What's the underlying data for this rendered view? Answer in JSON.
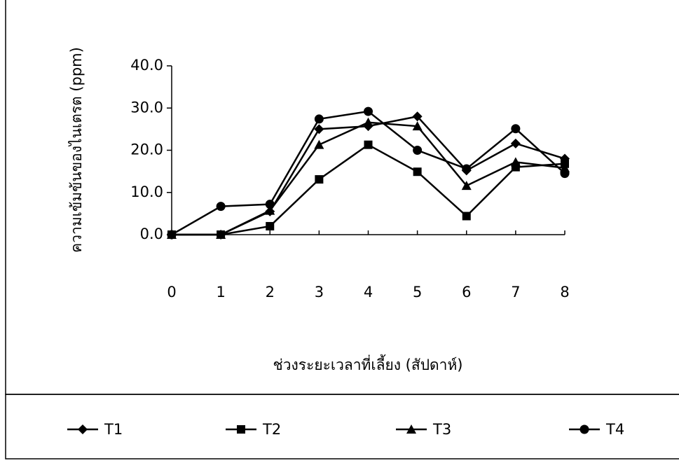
{
  "chart_data": {
    "type": "line",
    "x_label": "ช่วงระยะเวลาที่เลี้ยง (สัปดาห์)",
    "y_label": "ความเข้มข้นของไนเตรต (ppm)",
    "x": [
      0,
      1,
      2,
      3,
      4,
      5,
      6,
      7,
      8
    ],
    "xlim": [
      0,
      8
    ],
    "xticks": [
      0,
      1,
      2,
      3,
      4,
      5,
      6,
      7,
      8
    ],
    "ylim": [
      0,
      40
    ],
    "yticks": [
      {
        "value": 0,
        "label": "0.0"
      },
      {
        "value": 10,
        "label": "10.0"
      },
      {
        "value": 20,
        "label": "20.0"
      },
      {
        "value": 30,
        "label": "30.0"
      },
      {
        "value": 40,
        "label": "40.0"
      }
    ],
    "grid": false,
    "legend": "bottom",
    "series": [
      {
        "name": "T1",
        "color": "#000000",
        "marker": "diamond",
        "values": [
          0,
          0,
          5.5,
          25,
          25.7,
          28,
          15.2,
          21.6,
          18
        ]
      },
      {
        "name": "T2",
        "color": "#000000",
        "marker": "square",
        "values": [
          0,
          0,
          2,
          13.1,
          21.3,
          14.9,
          4.4,
          16,
          16.8
        ]
      },
      {
        "name": "T3",
        "color": "#000000",
        "marker": "triangle",
        "values": [
          0,
          0,
          5.7,
          21.3,
          26.6,
          25.7,
          11.6,
          17.2,
          15.8
        ]
      },
      {
        "name": "T4",
        "color": "#000000",
        "marker": "circle",
        "values": [
          0,
          6.7,
          7.2,
          27.4,
          29.2,
          20,
          15.6,
          25.1,
          14.5
        ]
      }
    ]
  }
}
